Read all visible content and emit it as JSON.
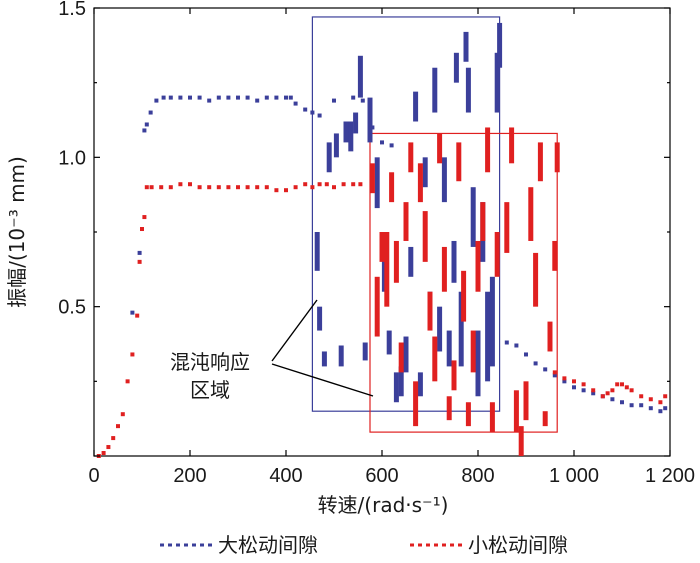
{
  "chart_data": {
    "type": "scatter",
    "title": "",
    "xlabel": "转速/(rad·s⁻¹)",
    "ylabel": "振幅/(10⁻³ mm)",
    "xlim": [
      0,
      1200
    ],
    "ylim": [
      0,
      1.5
    ],
    "x_ticks": [
      {
        "value": 0,
        "label": "0"
      },
      {
        "value": 200,
        "label": "200"
      },
      {
        "value": 400,
        "label": "400"
      },
      {
        "value": 600,
        "label": "600"
      },
      {
        "value": 800,
        "label": "800"
      },
      {
        "value": 1000,
        "label": "1 000"
      },
      {
        "value": 1200,
        "label": "1 200"
      }
    ],
    "y_ticks": [
      {
        "value": 0.5,
        "label": "0.5"
      },
      {
        "value": 1.0,
        "label": "1.0"
      },
      {
        "value": 1.5,
        "label": "1.5"
      }
    ],
    "grid": false,
    "legend_position": "bottom",
    "series": [
      {
        "name": "大松动间隙",
        "color": "#3b3f9a",
        "points": [
          [
            80,
            0.48
          ],
          [
            95,
            0.68
          ],
          [
            105,
            1.09
          ],
          [
            110,
            1.11
          ],
          [
            118,
            1.15
          ],
          [
            130,
            1.19
          ],
          [
            145,
            1.2
          ],
          [
            160,
            1.2
          ],
          [
            180,
            1.2
          ],
          [
            200,
            1.2
          ],
          [
            220,
            1.2
          ],
          [
            240,
            1.19
          ],
          [
            260,
            1.2
          ],
          [
            280,
            1.2
          ],
          [
            300,
            1.2
          ],
          [
            320,
            1.2
          ],
          [
            340,
            1.19
          ],
          [
            360,
            1.2
          ],
          [
            380,
            1.2
          ],
          [
            400,
            1.2
          ],
          [
            410,
            1.2
          ],
          [
            420,
            1.18
          ],
          [
            440,
            1.16
          ],
          [
            455,
            1.15
          ],
          [
            470,
            1.14
          ],
          [
            500,
            1.19
          ],
          [
            540,
            1.2
          ],
          [
            560,
            1.19
          ],
          [
            580,
            1.1
          ],
          [
            600,
            1.05
          ],
          [
            620,
            1.04
          ],
          [
            860,
            0.38
          ],
          [
            880,
            0.37
          ],
          [
            900,
            0.34
          ],
          [
            920,
            0.31
          ],
          [
            940,
            0.29
          ],
          [
            960,
            0.27
          ],
          [
            980,
            0.25
          ],
          [
            1000,
            0.23
          ],
          [
            1020,
            0.22
          ],
          [
            1040,
            0.21
          ],
          [
            1060,
            0.2
          ],
          [
            1080,
            0.19
          ],
          [
            1100,
            0.18
          ],
          [
            1120,
            0.17
          ],
          [
            1140,
            0.17
          ],
          [
            1160,
            0.16
          ],
          [
            1180,
            0.15
          ],
          [
            1190,
            0.16
          ]
        ],
        "chaotic_segments": [
          [
            465,
            0.62,
            0.75
          ],
          [
            470,
            0.42,
            0.5
          ],
          [
            480,
            0.3,
            0.35
          ],
          [
            490,
            0.95,
            1.05
          ],
          [
            505,
            1.0,
            1.08
          ],
          [
            515,
            0.3,
            0.37
          ],
          [
            525,
            1.05,
            1.12
          ],
          [
            535,
            1.02,
            1.12
          ],
          [
            545,
            1.08,
            1.15
          ],
          [
            555,
            1.2,
            1.34
          ],
          [
            565,
            0.32,
            0.38
          ],
          [
            575,
            1.05,
            1.2
          ],
          [
            590,
            0.83,
            1.0
          ],
          [
            605,
            0.55,
            0.75
          ],
          [
            615,
            0.34,
            0.42
          ],
          [
            630,
            0.18,
            0.28
          ],
          [
            640,
            0.2,
            0.3
          ],
          [
            650,
            0.28,
            0.4
          ],
          [
            660,
            0.6,
            0.7
          ],
          [
            670,
            1.12,
            1.22
          ],
          [
            680,
            0.2,
            0.28
          ],
          [
            690,
            0.9,
            1.0
          ],
          [
            700,
            0.45,
            0.55
          ],
          [
            710,
            1.15,
            1.3
          ],
          [
            720,
            0.35,
            0.5
          ],
          [
            730,
            0.85,
            1.0
          ],
          [
            740,
            0.3,
            0.42
          ],
          [
            750,
            0.58,
            0.72
          ],
          [
            755,
            1.25,
            1.35
          ],
          [
            765,
            0.3,
            0.55
          ],
          [
            775,
            1.32,
            1.42
          ],
          [
            780,
            1.15,
            1.3
          ],
          [
            790,
            0.7,
            0.9
          ],
          [
            800,
            0.2,
            0.42
          ],
          [
            810,
            0.65,
            0.85
          ],
          [
            820,
            0.25,
            0.55
          ],
          [
            830,
            0.3,
            0.6
          ],
          [
            840,
            1.15,
            1.35
          ],
          [
            845,
            1.3,
            1.45
          ]
        ]
      },
      {
        "name": "小松动间隙",
        "color": "#e02020",
        "points": [
          [
            10,
            0.0
          ],
          [
            20,
            0.01
          ],
          [
            30,
            0.03
          ],
          [
            40,
            0.06
          ],
          [
            50,
            0.1
          ],
          [
            60,
            0.14
          ],
          [
            70,
            0.25
          ],
          [
            80,
            0.34
          ],
          [
            90,
            0.47
          ],
          [
            95,
            0.65
          ],
          [
            100,
            0.76
          ],
          [
            105,
            0.8
          ],
          [
            110,
            0.9
          ],
          [
            120,
            0.9
          ],
          [
            140,
            0.9
          ],
          [
            160,
            0.9
          ],
          [
            180,
            0.91
          ],
          [
            200,
            0.91
          ],
          [
            220,
            0.9
          ],
          [
            240,
            0.9
          ],
          [
            260,
            0.9
          ],
          [
            280,
            0.9
          ],
          [
            300,
            0.9
          ],
          [
            320,
            0.9
          ],
          [
            340,
            0.9
          ],
          [
            360,
            0.9
          ],
          [
            380,
            0.89
          ],
          [
            400,
            0.89
          ],
          [
            420,
            0.9
          ],
          [
            440,
            0.91
          ],
          [
            455,
            0.9
          ],
          [
            470,
            0.91
          ],
          [
            485,
            0.91
          ],
          [
            500,
            0.9
          ],
          [
            520,
            0.91
          ],
          [
            540,
            0.91
          ],
          [
            555,
            0.91
          ],
          [
            960,
            0.28
          ],
          [
            980,
            0.26
          ],
          [
            1000,
            0.25
          ],
          [
            1020,
            0.24
          ],
          [
            1040,
            0.22
          ],
          [
            1060,
            0.2
          ],
          [
            1070,
            0.21
          ],
          [
            1080,
            0.22
          ],
          [
            1090,
            0.24
          ],
          [
            1100,
            0.24
          ],
          [
            1110,
            0.23
          ],
          [
            1120,
            0.22
          ],
          [
            1140,
            0.2
          ],
          [
            1160,
            0.19
          ],
          [
            1180,
            0.18
          ],
          [
            1190,
            0.2
          ]
        ],
        "chaotic_segments": [
          [
            580,
            0.88,
            0.98
          ],
          [
            590,
            0.4,
            0.6
          ],
          [
            600,
            0.65,
            0.75
          ],
          [
            610,
            0.5,
            0.75
          ],
          [
            620,
            0.85,
            0.95
          ],
          [
            630,
            0.58,
            0.72
          ],
          [
            640,
            0.28,
            0.38
          ],
          [
            650,
            0.72,
            0.85
          ],
          [
            660,
            0.95,
            1.05
          ],
          [
            670,
            0.1,
            0.25
          ],
          [
            680,
            0.85,
            0.98
          ],
          [
            690,
            0.65,
            0.82
          ],
          [
            700,
            0.42,
            0.55
          ],
          [
            710,
            0.25,
            0.4
          ],
          [
            720,
            0.98,
            1.08
          ],
          [
            730,
            0.55,
            0.7
          ],
          [
            740,
            0.12,
            0.2
          ],
          [
            750,
            0.22,
            0.32
          ],
          [
            760,
            0.92,
            1.05
          ],
          [
            770,
            0.45,
            0.62
          ],
          [
            780,
            0.1,
            0.18
          ],
          [
            790,
            0.28,
            0.42
          ],
          [
            800,
            0.55,
            0.72
          ],
          [
            810,
            0.72,
            0.85
          ],
          [
            820,
            0.95,
            1.1
          ],
          [
            830,
            0.08,
            0.18
          ],
          [
            840,
            0.6,
            0.75
          ],
          [
            860,
            0.68,
            0.85
          ],
          [
            870,
            0.98,
            1.1
          ],
          [
            880,
            0.08,
            0.22
          ],
          [
            890,
            0.0,
            0.1
          ],
          [
            900,
            0.12,
            0.25
          ],
          [
            910,
            0.72,
            0.9
          ],
          [
            920,
            0.5,
            0.68
          ],
          [
            930,
            0.92,
            1.05
          ],
          [
            940,
            0.1,
            0.15
          ],
          [
            950,
            0.35,
            0.45
          ],
          [
            960,
            0.62,
            0.72
          ],
          [
            965,
            0.95,
            1.05
          ]
        ]
      }
    ],
    "regions": [
      {
        "series": "大松动间隙",
        "x": [
          455,
          845
        ],
        "y": [
          0.15,
          1.47
        ]
      },
      {
        "series": "小松动间隙",
        "x": [
          575,
          965
        ],
        "y": [
          0.08,
          1.08
        ]
      }
    ],
    "annotation": {
      "lines": [
        "混沌响应",
        "区域"
      ]
    }
  }
}
